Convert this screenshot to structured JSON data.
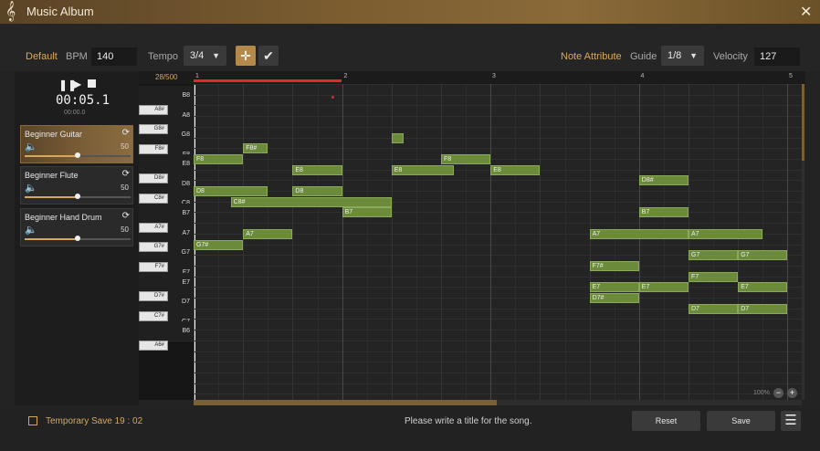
{
  "app": {
    "title": "Music Album",
    "logo_icon": "treble-clef-icon",
    "close_icon": "close-icon"
  },
  "toolbar": {
    "default_label": "Default",
    "bpm_label": "BPM",
    "bpm_value": "140",
    "tempo_label": "Tempo",
    "tempo_value": "3/4",
    "dropdown_arrow": "▼",
    "move_icon": "move-icon",
    "check_icon": "checkmark-icon",
    "note_attribute_label": "Note Attribute",
    "guide_label": "Guide",
    "guide_value": "1/8",
    "velocity_label": "Velocity",
    "velocity_value": "127"
  },
  "player": {
    "time": "00:05.1",
    "time_small": "00:00.0",
    "note_count": "28/500"
  },
  "tracks": [
    {
      "name": "Beginner Guitar",
      "volume": "50",
      "level": 0.5,
      "selected": true
    },
    {
      "name": "Beginner Flute",
      "volume": "50",
      "level": 0.5,
      "selected": false
    },
    {
      "name": "Beginner Hand Drum",
      "volume": "50",
      "level": 0.5,
      "selected": false
    }
  ],
  "ruler": {
    "bars": [
      "1",
      "2",
      "3",
      "4",
      "5"
    ]
  },
  "keys": [
    {
      "n": "B8",
      "t": "w"
    },
    {
      "n": "A8#",
      "t": "b"
    },
    {
      "n": "A8",
      "t": "w"
    },
    {
      "n": "G8#",
      "t": "b"
    },
    {
      "n": "G8",
      "t": "w"
    },
    {
      "n": "F8#",
      "t": "b"
    },
    {
      "n": "F8",
      "t": "w"
    },
    {
      "n": "E8",
      "t": "w"
    },
    {
      "n": "D8#",
      "t": "b"
    },
    {
      "n": "D8",
      "t": "w"
    },
    {
      "n": "C8#",
      "t": "b"
    },
    {
      "n": "C8",
      "t": "w"
    },
    {
      "n": "B7",
      "t": "w"
    },
    {
      "n": "A7#",
      "t": "b"
    },
    {
      "n": "A7",
      "t": "w"
    },
    {
      "n": "G7#",
      "t": "b"
    },
    {
      "n": "G7",
      "t": "w"
    },
    {
      "n": "F7#",
      "t": "b"
    },
    {
      "n": "F7",
      "t": "w"
    },
    {
      "n": "E7",
      "t": "w"
    },
    {
      "n": "D7#",
      "t": "b"
    },
    {
      "n": "D7",
      "t": "w"
    },
    {
      "n": "C7#",
      "t": "b"
    },
    {
      "n": "C7",
      "t": "w"
    },
    {
      "n": "B6",
      "t": "w"
    },
    {
      "n": "A6#",
      "t": "b"
    }
  ],
  "notes": [
    {
      "l": "F8#",
      "r": 6,
      "s": 1.0,
      "d": 0.5
    },
    {
      "l": "F8",
      "r": 7,
      "s": 0,
      "d": 1.0
    },
    {
      "l": "",
      "r": 5,
      "s": 4.0,
      "d": 0.25
    },
    {
      "l": "F8",
      "r": 7,
      "s": 5.0,
      "d": 1.0
    },
    {
      "l": "E8",
      "r": 8,
      "s": 2.0,
      "d": 1.0
    },
    {
      "l": "E8",
      "r": 8,
      "s": 4.0,
      "d": 1.25
    },
    {
      "l": "E8",
      "r": 8,
      "s": 6.0,
      "d": 1.0
    },
    {
      "l": "D8#",
      "r": 9,
      "s": 9.0,
      "d": 1.0
    },
    {
      "l": "D8",
      "r": 10,
      "s": 0,
      "d": 1.5
    },
    {
      "l": "D8",
      "r": 10,
      "s": 2.0,
      "d": 1.0
    },
    {
      "l": "C8#",
      "r": 11,
      "s": 0.75,
      "d": 3.25
    },
    {
      "l": "B7",
      "r": 12,
      "s": 3.0,
      "d": 1.0
    },
    {
      "l": "B7",
      "r": 12,
      "s": 9.0,
      "d": 1.0
    },
    {
      "l": "A7",
      "r": 14,
      "s": 1.0,
      "d": 1.0
    },
    {
      "l": "A7",
      "r": 14,
      "s": 8.0,
      "d": 2.0
    },
    {
      "l": "A7",
      "r": 14,
      "s": 10.0,
      "d": 1.5
    },
    {
      "l": "G7#",
      "r": 15,
      "s": 0,
      "d": 1.0
    },
    {
      "l": "G7",
      "r": 16,
      "s": 10.0,
      "d": 1.0
    },
    {
      "l": "G7",
      "r": 16,
      "s": 11.0,
      "d": 1.0
    },
    {
      "l": "F7#",
      "r": 17,
      "s": 8.0,
      "d": 1.0
    },
    {
      "l": "F7",
      "r": 18,
      "s": 10.0,
      "d": 1.0
    },
    {
      "l": "E7",
      "r": 19,
      "s": 8.0,
      "d": 1.0
    },
    {
      "l": "E7",
      "r": 19,
      "s": 9.0,
      "d": 1.0
    },
    {
      "l": "E7",
      "r": 19,
      "s": 11.0,
      "d": 1.0
    },
    {
      "l": "D7#",
      "r": 20,
      "s": 8.0,
      "d": 1.0
    },
    {
      "l": "D7",
      "r": 21,
      "s": 10.0,
      "d": 1.0
    },
    {
      "l": "D7",
      "r": 21,
      "s": 11.0,
      "d": 1.0
    }
  ],
  "zoom": {
    "value": "100%",
    "minus": "−",
    "plus": "+"
  },
  "bottom": {
    "save_text": "Temporary Save 19 : 02",
    "title_placeholder": "Please write a title for the song.",
    "reset_label": "Reset",
    "save_label": "Save",
    "menu_icon": "hamburger-menu-icon",
    "save_icon": "save-file-icon"
  },
  "colors": {
    "accent": "#d7a85a",
    "note": "#6b8a3a",
    "playhead": "#e0282e"
  }
}
